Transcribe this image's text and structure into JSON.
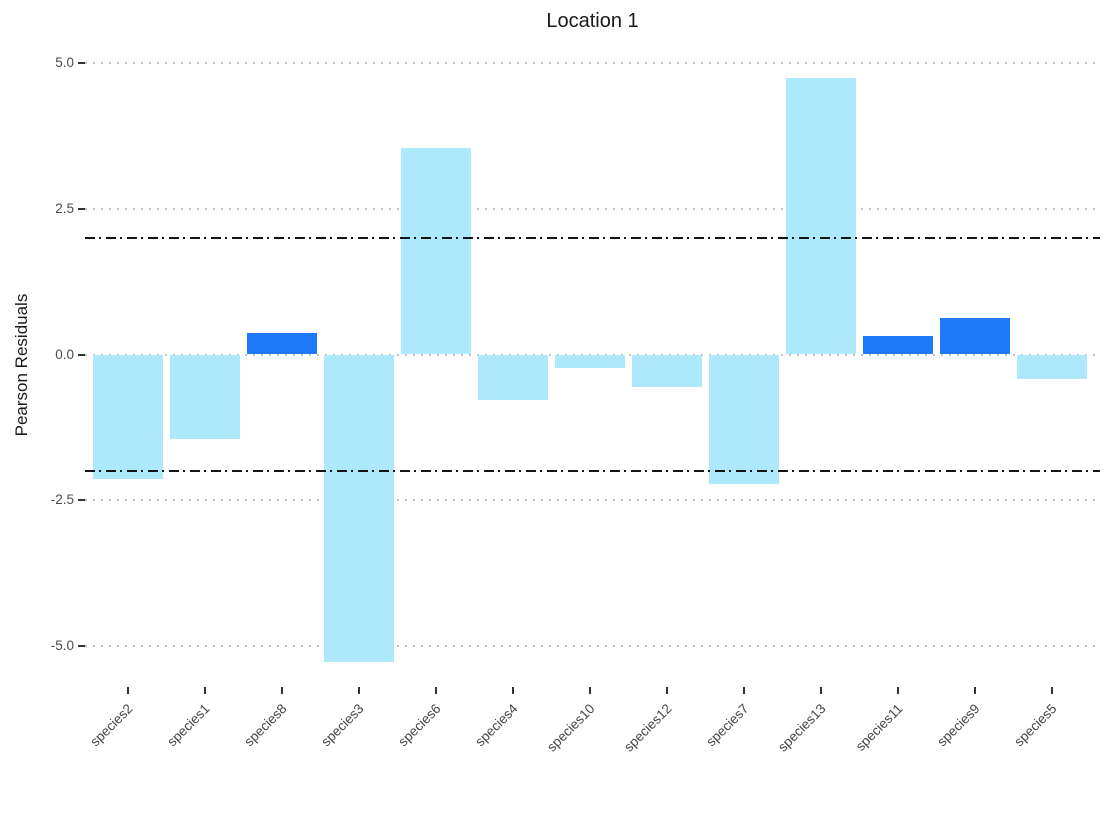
{
  "title": "Location 1",
  "y_axis_title": "Pearson Residuals",
  "colors": {
    "bar_light_blue": "#AEE8FC",
    "bar_dark_blue": "#1F7AFA",
    "gridline_gray": "#C3C3C3",
    "reference_line_black": "#141414",
    "axis_text_gray": "#4D4D4D"
  },
  "chart_data": {
    "type": "bar",
    "title": "Location 1",
    "xlabel": "",
    "ylabel": "Pearson Residuals",
    "categories": [
      "species2",
      "species1",
      "species8",
      "species3",
      "species6",
      "species4",
      "species10",
      "species12",
      "species7",
      "species13",
      "species11",
      "species9",
      "species5"
    ],
    "values": [
      -2.14,
      -1.45,
      0.37,
      -5.27,
      3.54,
      -0.78,
      -0.24,
      -0.56,
      -2.22,
      4.74,
      0.32,
      0.63,
      -0.42
    ],
    "bar_colors": [
      "#AEE8FC",
      "#AEE8FC",
      "#1F7AFA",
      "#AEE8FC",
      "#AEE8FC",
      "#AEE8FC",
      "#AEE8FC",
      "#AEE8FC",
      "#AEE8FC",
      "#AEE8FC",
      "#1F7AFA",
      "#1F7AFA",
      "#AEE8FC"
    ],
    "yticks": [
      5.0,
      2.5,
      0.0,
      -2.5,
      -5.0
    ],
    "ytick_labels": [
      "5.0",
      "2.5",
      "0.0",
      "-2.5",
      "-5.0"
    ],
    "reference_lines": [
      2,
      -2
    ],
    "ylim": [
      -5.67,
      5.31
    ],
    "grid": "horizontal dotted at yticks",
    "legend": "none"
  }
}
